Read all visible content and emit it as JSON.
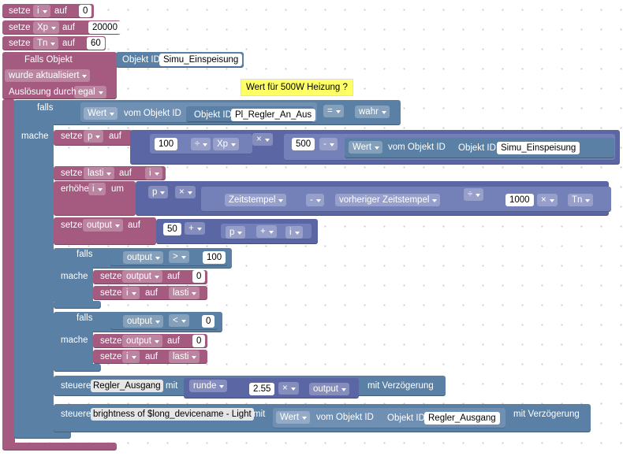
{
  "rows": [
    [
      "setze",
      "i",
      "auf",
      "0"
    ],
    [
      "setze",
      "Xp",
      "auf",
      "20000"
    ],
    [
      "setze",
      "Tn",
      "auf",
      "60"
    ],
    [
      "Falls Objekt",
      "Objekt ID",
      "Simu_Einspeisung"
    ],
    [
      "wurde aktualisiert"
    ],
    [
      "Wert für 500W Heizung ?"
    ],
    [
      "Auslösung durch",
      "egal"
    ],
    [
      "falls",
      "Wert",
      "vom Objekt ID",
      "Objekt ID",
      "Pl_Regler_An_Aus",
      "=",
      "wahr"
    ],
    [
      "mache"
    ],
    [
      "setze",
      "p",
      "auf",
      "100",
      "÷",
      "Xp",
      "×",
      "500",
      "-",
      "Wert",
      "vom Objekt ID",
      "Objekt ID",
      "Simu_Einspeisung"
    ],
    [
      "setze",
      "lasti",
      "auf",
      "i"
    ],
    [
      "erhöhe",
      "i",
      "um",
      "p",
      "×",
      "Zeitstempel",
      "-",
      "vorheriger Zeitstempel",
      "÷",
      "1000",
      "×",
      "Tn"
    ],
    [
      "setze",
      "output",
      "auf",
      "50",
      "+",
      "p",
      "+",
      "i"
    ],
    [
      "falls",
      "output",
      ">",
      "100"
    ],
    [
      "mache",
      "setze",
      "output",
      "auf",
      "0"
    ],
    [
      "setze",
      "i",
      "auf",
      "lasti"
    ],
    [
      "falls",
      "output",
      "<",
      "0"
    ],
    [
      "mache",
      "setze",
      "output",
      "auf",
      "0"
    ],
    [
      "setze",
      "i",
      "auf",
      "lasti"
    ],
    [
      "steuere",
      "Regler_Ausgang",
      "mit",
      "runde",
      "2.55",
      "×",
      "output",
      "mit Verzögerung"
    ],
    [
      "steuere",
      "brightness of $long_devicename - Light",
      "mit",
      "Wert",
      "vom Objekt ID",
      "Objekt ID",
      "Regler_Ausgang",
      "mit Verzögerung"
    ]
  ]
}
